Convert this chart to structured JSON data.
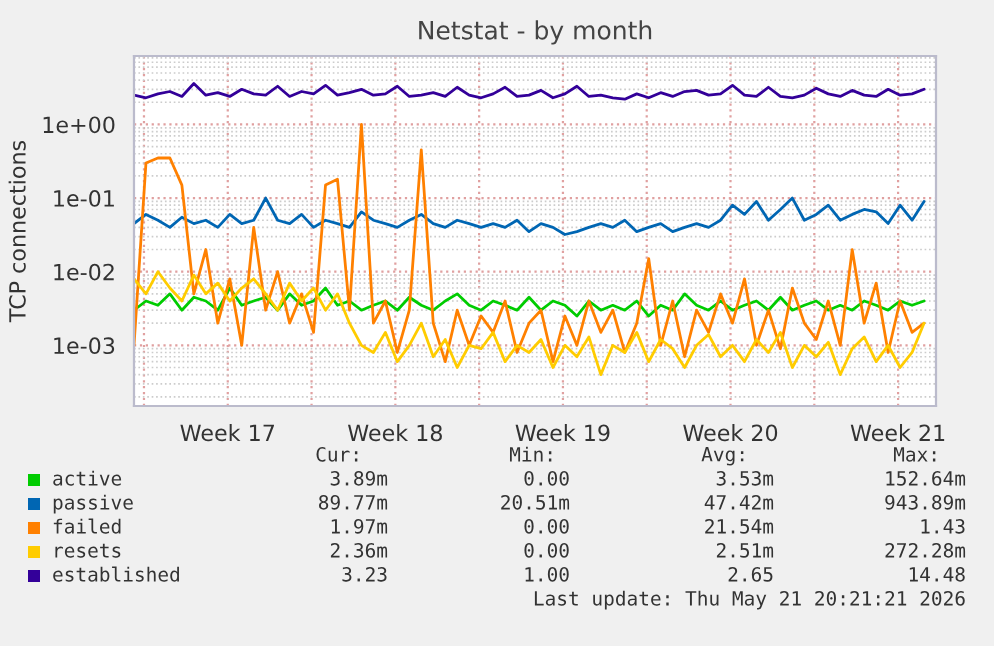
{
  "chart_data": {
    "type": "line",
    "title": "Netstat - by month",
    "ylabel": "TCP connections",
    "log": "y",
    "grid": true,
    "legend": "bottom",
    "ylim": [
      0.00015,
      8.5
    ],
    "yticks": [
      {
        "value": 0.001,
        "label": "1e-03"
      },
      {
        "value": 0.01,
        "label": "1e-02"
      },
      {
        "value": 0.1,
        "label": "1e-01"
      },
      {
        "value": 1,
        "label": "1e+00"
      }
    ],
    "xlim": [
      "2026-04-19T14:00",
      "2026-05-23T02:00"
    ],
    "xticks": [
      {
        "value": "2026-04-20",
        "label": null
      },
      {
        "value": "2026-04-23T12:00",
        "label": "Week 17"
      },
      {
        "value": "2026-04-27",
        "label": null
      },
      {
        "value": "2026-04-30T12:00",
        "label": "Week 18"
      },
      {
        "value": "2026-05-04",
        "label": null
      },
      {
        "value": "2026-05-07T12:00",
        "label": "Week 19"
      },
      {
        "value": "2026-05-11",
        "label": null
      },
      {
        "value": "2026-05-14T12:00",
        "label": "Week 20"
      },
      {
        "value": "2026-05-18",
        "label": null
      },
      {
        "value": "2026-05-21T12:00",
        "label": "Week 21"
      }
    ],
    "x": [
      "2026-04-19T14:00",
      "2026-04-20T02:00",
      "2026-04-20T14:00",
      "2026-04-21T02:00",
      "2026-04-21T14:00",
      "2026-04-22T02:00",
      "2026-04-22T14:00",
      "2026-04-23T02:00",
      "2026-04-23T14:00",
      "2026-04-24T02:00",
      "2026-04-24T14:00",
      "2026-04-25T02:00",
      "2026-04-25T14:00",
      "2026-04-26T02:00",
      "2026-04-26T14:00",
      "2026-04-27T02:00",
      "2026-04-27T14:00",
      "2026-04-28T02:00",
      "2026-04-28T14:00",
      "2026-04-29T02:00",
      "2026-04-29T14:00",
      "2026-04-30T02:00",
      "2026-04-30T14:00",
      "2026-05-01T02:00",
      "2026-05-01T14:00",
      "2026-05-02T02:00",
      "2026-05-02T14:00",
      "2026-05-03T02:00",
      "2026-05-03T14:00",
      "2026-05-04T02:00",
      "2026-05-04T14:00",
      "2026-05-05T02:00",
      "2026-05-05T14:00",
      "2026-05-06T02:00",
      "2026-05-06T14:00",
      "2026-05-07T02:00",
      "2026-05-07T14:00",
      "2026-05-08T02:00",
      "2026-05-08T14:00",
      "2026-05-09T02:00",
      "2026-05-09T14:00",
      "2026-05-10T02:00",
      "2026-05-10T14:00",
      "2026-05-11T02:00",
      "2026-05-11T14:00",
      "2026-05-12T02:00",
      "2026-05-12T14:00",
      "2026-05-13T02:00",
      "2026-05-13T14:00",
      "2026-05-14T02:00",
      "2026-05-14T14:00",
      "2026-05-15T02:00",
      "2026-05-15T14:00",
      "2026-05-16T02:00",
      "2026-05-16T14:00",
      "2026-05-17T02:00",
      "2026-05-17T14:00",
      "2026-05-18T02:00",
      "2026-05-18T14:00",
      "2026-05-19T02:00",
      "2026-05-19T14:00",
      "2026-05-20T02:00",
      "2026-05-20T14:00",
      "2026-05-21T02:00",
      "2026-05-21T14:00",
      "2026-05-22T02:00",
      "2026-05-22T14:00"
    ],
    "series": [
      {
        "name": "active",
        "color": "#00cc00",
        "values": [
          0.003,
          0.004,
          0.0035,
          0.005,
          0.003,
          0.0045,
          0.004,
          0.003,
          0.006,
          0.0035,
          0.004,
          0.0045,
          0.003,
          0.005,
          0.0035,
          0.004,
          0.006,
          0.0035,
          0.004,
          0.003,
          0.0035,
          0.004,
          0.003,
          0.0045,
          0.0035,
          0.003,
          0.004,
          0.005,
          0.0035,
          0.003,
          0.004,
          0.0035,
          0.003,
          0.0045,
          0.003,
          0.004,
          0.0035,
          0.0025,
          0.004,
          0.003,
          0.0035,
          0.003,
          0.004,
          0.0025,
          0.0035,
          0.003,
          0.005,
          0.0035,
          0.003,
          0.004,
          0.003,
          0.0035,
          0.004,
          0.003,
          0.0045,
          0.003,
          0.0035,
          0.004,
          0.003,
          0.0035,
          0.003,
          0.004,
          0.0035,
          0.003,
          0.004,
          0.0035,
          0.004
        ]
      },
      {
        "name": "passive",
        "color": "#0066b3",
        "values": [
          0.045,
          0.06,
          0.05,
          0.04,
          0.055,
          0.045,
          0.05,
          0.04,
          0.06,
          0.045,
          0.05,
          0.1,
          0.05,
          0.045,
          0.06,
          0.04,
          0.05,
          0.045,
          0.04,
          0.065,
          0.05,
          0.045,
          0.04,
          0.05,
          0.06,
          0.045,
          0.04,
          0.05,
          0.045,
          0.04,
          0.045,
          0.04,
          0.05,
          0.035,
          0.045,
          0.04,
          0.032,
          0.035,
          0.04,
          0.045,
          0.04,
          0.05,
          0.035,
          0.04,
          0.045,
          0.035,
          0.04,
          0.045,
          0.04,
          0.05,
          0.08,
          0.06,
          0.09,
          0.05,
          0.07,
          0.1,
          0.05,
          0.06,
          0.08,
          0.05,
          0.06,
          0.07,
          0.065,
          0.045,
          0.08,
          0.05,
          0.09
        ]
      },
      {
        "name": "failed",
        "color": "#ff8000",
        "values": [
          0.001,
          0.3,
          0.35,
          0.35,
          0.15,
          0.005,
          0.02,
          0.002,
          0.008,
          0.001,
          0.04,
          0.003,
          0.01,
          0.002,
          0.005,
          0.0015,
          0.15,
          0.18,
          0.003,
          1.0,
          0.002,
          0.004,
          0.0008,
          0.003,
          0.45,
          0.002,
          0.0006,
          0.003,
          0.001,
          0.0025,
          0.0015,
          0.004,
          0.0008,
          0.002,
          0.003,
          0.0006,
          0.0025,
          0.001,
          0.004,
          0.0015,
          0.003,
          0.0008,
          0.002,
          0.015,
          0.001,
          0.004,
          0.0007,
          0.003,
          0.0015,
          0.005,
          0.002,
          0.008,
          0.001,
          0.003,
          0.0009,
          0.006,
          0.002,
          0.0012,
          0.004,
          0.001,
          0.02,
          0.002,
          0.007,
          0.0008,
          0.004,
          0.0015,
          0.002
        ]
      },
      {
        "name": "resets",
        "color": "#ffcc00",
        "values": [
          0.008,
          0.005,
          0.01,
          0.006,
          0.004,
          0.009,
          0.005,
          0.007,
          0.004,
          0.006,
          0.008,
          0.005,
          0.003,
          0.007,
          0.004,
          0.006,
          0.003,
          0.005,
          0.002,
          0.001,
          0.0008,
          0.0015,
          0.0006,
          0.001,
          0.002,
          0.0007,
          0.0012,
          0.0005,
          0.001,
          0.0009,
          0.0015,
          0.0006,
          0.001,
          0.0008,
          0.0012,
          0.0005,
          0.001,
          0.0007,
          0.0013,
          0.0004,
          0.001,
          0.0008,
          0.0015,
          0.0006,
          0.0012,
          0.0009,
          0.0005,
          0.001,
          0.0014,
          0.0007,
          0.001,
          0.0006,
          0.0012,
          0.0008,
          0.0015,
          0.0005,
          0.001,
          0.0007,
          0.0011,
          0.0004,
          0.0009,
          0.0013,
          0.0006,
          0.001,
          0.0005,
          0.0008,
          0.002
        ]
      },
      {
        "name": "established",
        "color": "#330099",
        "values": [
          2.5,
          2.3,
          2.6,
          2.8,
          2.4,
          3.6,
          2.5,
          2.7,
          2.4,
          3.0,
          2.6,
          2.5,
          3.3,
          2.4,
          2.8,
          2.6,
          3.4,
          2.5,
          2.7,
          3.0,
          2.5,
          2.6,
          3.3,
          2.4,
          2.5,
          2.7,
          2.4,
          3.2,
          2.5,
          2.3,
          2.6,
          3.2,
          2.4,
          2.5,
          2.9,
          2.3,
          2.6,
          3.3,
          2.4,
          2.5,
          2.3,
          2.2,
          2.6,
          2.3,
          2.7,
          2.4,
          2.8,
          2.9,
          2.5,
          2.6,
          3.4,
          2.5,
          2.4,
          3.2,
          2.4,
          2.3,
          2.5,
          3.1,
          2.6,
          2.4,
          2.9,
          2.5,
          2.4,
          3.0,
          2.5,
          2.6,
          3.0
        ]
      }
    ],
    "annotations": [
      "Cur:",
      "Min:",
      "Avg:",
      "Max:",
      "3.89m",
      "0.00",
      "3.53m",
      "152.64m",
      "89.77m",
      "20.51m",
      "47.42m",
      "943.89m",
      "1.97m",
      "0.00",
      "21.54m",
      "1.43",
      "2.36m",
      "0.00",
      "2.51m",
      "272.28m",
      "3.23",
      "1.00",
      "2.65",
      "14.48",
      "Last update: Thu May 21 20:21:21 2026"
    ]
  }
}
